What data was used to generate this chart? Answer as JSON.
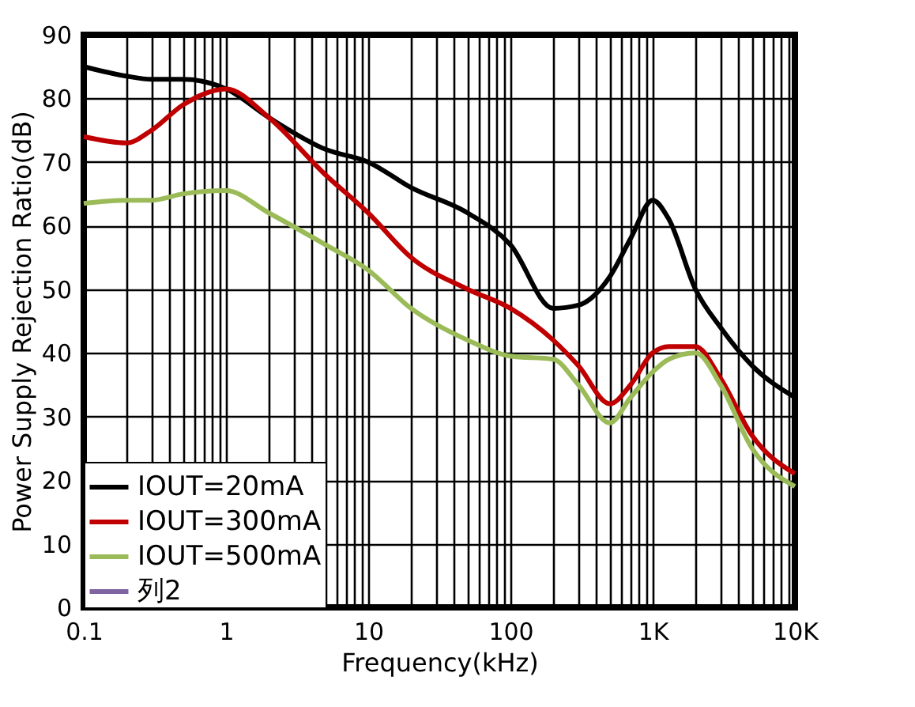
{
  "chart_data": {
    "type": "line",
    "xlabel": "Frequency(kHz)",
    "ylabel": "Power Supply Rejection Ratio(dB)",
    "x": [
      0.1,
      0.2,
      0.3,
      0.5,
      1,
      2,
      5,
      10,
      20,
      50,
      100,
      200,
      300,
      500,
      700,
      1000,
      1300,
      2000,
      3000,
      5000,
      10000
    ],
    "series": [
      {
        "name": "IOUT=20mA",
        "color": "#000000",
        "values": [
          85,
          83.5,
          83,
          83,
          81.5,
          77,
          72,
          70,
          66,
          62,
          57,
          47,
          47.5,
          52,
          58,
          64,
          61,
          50,
          44,
          38,
          33
        ]
      },
      {
        "name": "IOUT=300mA",
        "color": "#c00000",
        "values": [
          74,
          73,
          75,
          79,
          81.5,
          77,
          68,
          62,
          55,
          50,
          47,
          42,
          38,
          32,
          35,
          40,
          41,
          41,
          36,
          27,
          21
        ]
      },
      {
        "name": "IOUT=500mA",
        "color": "#9bbb59",
        "values": [
          63.5,
          64,
          64,
          65,
          65.5,
          62,
          57,
          53,
          47,
          42,
          39.5,
          39,
          35,
          29,
          33,
          37,
          39,
          40,
          35,
          25,
          19
        ]
      },
      {
        "name": "列2",
        "color": "#8064a2",
        "values": [
          null,
          null,
          null,
          null,
          null,
          null,
          null,
          null,
          null,
          null,
          null,
          null,
          null,
          null,
          null,
          null,
          null,
          null,
          null,
          null,
          null
        ]
      }
    ],
    "log": "x",
    "xlim": [
      0.1,
      10000
    ],
    "xticks": [
      0.1,
      {
        "value": 0.2,
        "label": null
      },
      {
        "value": 0.3,
        "label": null
      },
      {
        "value": 0.4,
        "label": null
      },
      {
        "value": 0.5,
        "label": null
      },
      {
        "value": 0.6,
        "label": null
      },
      {
        "value": 0.7,
        "label": null
      },
      {
        "value": 0.8,
        "label": null
      },
      {
        "value": 0.9,
        "label": null
      },
      1,
      {
        "value": 2,
        "label": null
      },
      {
        "value": 3,
        "label": null
      },
      {
        "value": 4,
        "label": null
      },
      {
        "value": 5,
        "label": null
      },
      {
        "value": 6,
        "label": null
      },
      {
        "value": 7,
        "label": null
      },
      {
        "value": 8,
        "label": null
      },
      {
        "value": 9,
        "label": null
      },
      10,
      {
        "value": 20,
        "label": null
      },
      {
        "value": 30,
        "label": null
      },
      {
        "value": 40,
        "label": null
      },
      {
        "value": 50,
        "label": null
      },
      {
        "value": 60,
        "label": null
      },
      {
        "value": 70,
        "label": null
      },
      {
        "value": 80,
        "label": null
      },
      {
        "value": 90,
        "label": null
      },
      100,
      {
        "value": 200,
        "label": null
      },
      {
        "value": 300,
        "label": null
      },
      {
        "value": 400,
        "label": null
      },
      {
        "value": 500,
        "label": null
      },
      {
        "value": 600,
        "label": null
      },
      {
        "value": 700,
        "label": null
      },
      {
        "value": 800,
        "label": null
      },
      {
        "value": 900,
        "label": null
      },
      {
        "value": 1000,
        "label": "1K"
      },
      {
        "value": 2000,
        "label": null
      },
      {
        "value": 3000,
        "label": null
      },
      {
        "value": 4000,
        "label": null
      },
      {
        "value": 5000,
        "label": null
      },
      {
        "value": 6000,
        "label": null
      },
      {
        "value": 7000,
        "label": null
      },
      {
        "value": 8000,
        "label": null
      },
      {
        "value": 9000,
        "label": null
      },
      {
        "value": 10000,
        "label": "10K"
      }
    ],
    "ylim": [
      0,
      90
    ],
    "yticks": [
      0,
      10,
      20,
      30,
      40,
      50,
      60,
      70,
      80,
      90
    ],
    "grid": true,
    "legend": "bottom left",
    "marker": "none",
    "line_style": "solid"
  }
}
